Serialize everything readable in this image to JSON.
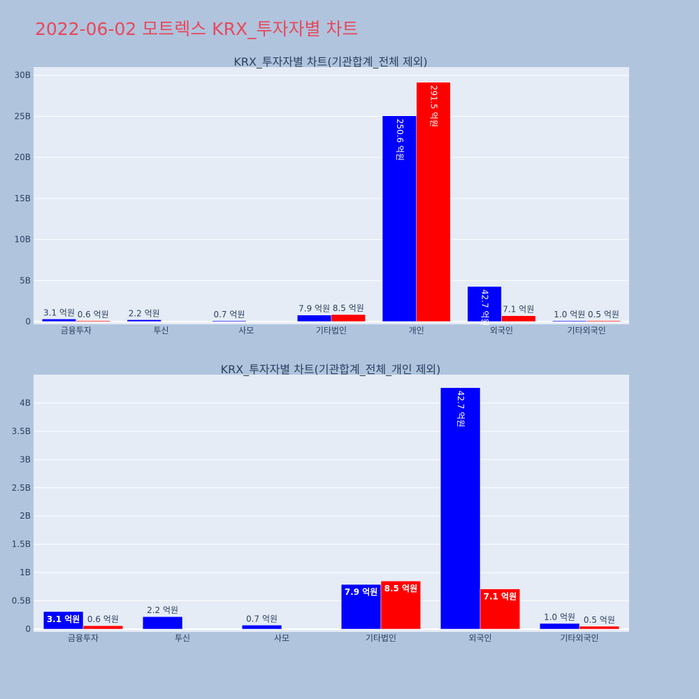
{
  "page": {
    "title": "2022-06-02 모트렉스 KRX_투자자별 차트"
  },
  "colors": {
    "background": "#b0c4de",
    "plot_bg": "#e5ecf6",
    "series_a": "#0000ff",
    "series_b": "#ff0000",
    "title": "#e8485a"
  },
  "chart_data": [
    {
      "type": "bar",
      "title": "KRX_투자자별 차트(기관합계_전체 제외)",
      "categories": [
        "금융투자",
        "투신",
        "사모",
        "기타법인",
        "개인",
        "외국인",
        "기타외국인"
      ],
      "ylim": [
        0,
        31000000000
      ],
      "yticks": [
        0,
        5000000000,
        10000000000,
        15000000000,
        20000000000,
        25000000000,
        30000000000
      ],
      "ytick_labels": [
        "0",
        "5B",
        "10B",
        "15B",
        "20B",
        "25B",
        "30B"
      ],
      "series": [
        {
          "values": [
            310000000,
            220000000,
            70000000,
            790000000,
            25060000000,
            4270000000,
            100000000
          ],
          "labels": [
            "3.1 억원",
            "2.2 억원",
            "0.7 억원",
            "7.9 억원",
            "250.6 억원",
            "42.7 억원",
            "1.0 억원"
          ],
          "label_pos": [
            "out",
            "out",
            "out",
            "out",
            "in-rot",
            "in-rot",
            "out"
          ]
        },
        {
          "values": [
            60000000,
            null,
            null,
            850000000,
            29150000000,
            710000000,
            50000000
          ],
          "labels": [
            "0.6 억원",
            null,
            null,
            "8.5 억원",
            "291.5 억원",
            "7.1 억원",
            "0.5 억원"
          ],
          "label_pos": [
            "out",
            null,
            null,
            "out",
            "in-rot",
            "out",
            "out"
          ]
        }
      ],
      "grid": true,
      "legend": "none"
    },
    {
      "type": "bar",
      "title": "KRX_투자자별 차트(기관합계_전체_개인 제외)",
      "categories": [
        "금융투자",
        "투신",
        "사모",
        "기타법인",
        "외국인",
        "기타외국인"
      ],
      "ylim": [
        0,
        4500000000
      ],
      "yticks": [
        0,
        500000000,
        1000000000,
        1500000000,
        2000000000,
        2500000000,
        3000000000,
        3500000000,
        4000000000
      ],
      "ytick_labels": [
        "0",
        "0.5B",
        "1B",
        "1.5B",
        "2B",
        "2.5B",
        "3B",
        "3.5B",
        "4B"
      ],
      "series": [
        {
          "values": [
            310000000,
            220000000,
            70000000,
            790000000,
            4270000000,
            100000000
          ],
          "labels": [
            "3.1 억원",
            "2.2 억원",
            "0.7 억원",
            "7.9 억원",
            "42.7 억원",
            "1.0 억원"
          ],
          "label_pos": [
            "in",
            "out",
            "out",
            "in",
            "in-rot",
            "out"
          ]
        },
        {
          "values": [
            60000000,
            null,
            null,
            850000000,
            710000000,
            50000000
          ],
          "labels": [
            "0.6 억원",
            null,
            null,
            "8.5 억원",
            "7.1 억원",
            "0.5 억원"
          ],
          "label_pos": [
            "out",
            null,
            null,
            "in",
            "in",
            "out"
          ]
        }
      ],
      "grid": true,
      "legend": "none"
    }
  ]
}
